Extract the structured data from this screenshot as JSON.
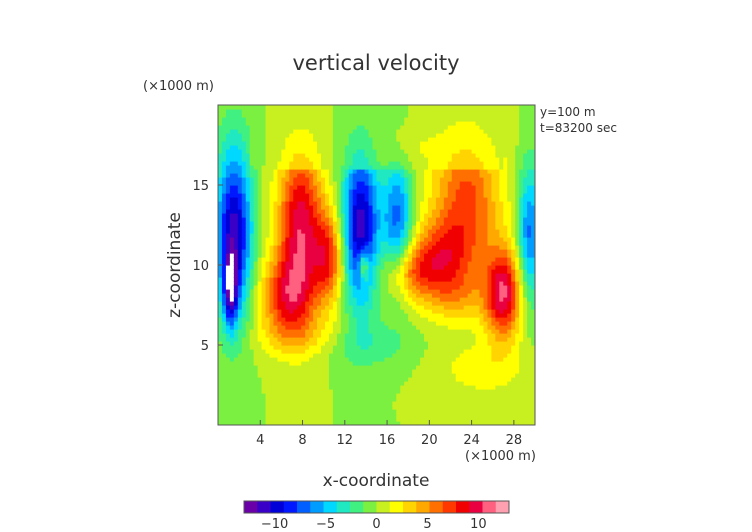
{
  "chart_data": {
    "type": "heatmap",
    "title": "vertical velocity",
    "xlabel": "x-coordinate",
    "ylabel": "z-coordinate",
    "x_unit": "(×1000 m)",
    "y_unit": "(×1000 m)",
    "annotations": [
      "y=100 m",
      "t=83200 sec"
    ],
    "xlim": [
      0,
      30
    ],
    "ylim": [
      0,
      20
    ],
    "x_ticks": [
      4,
      8,
      12,
      16,
      20,
      24,
      28
    ],
    "y_ticks": [
      5,
      10,
      15
    ],
    "grid": false,
    "colorbar": {
      "range": [
        -13,
        13
      ],
      "ticks": [
        -10,
        -5,
        0,
        5,
        10
      ],
      "colors": [
        "#6a00a8",
        "#3a00c8",
        "#0000d8",
        "#0018ff",
        "#0060ff",
        "#009cff",
        "#00d8ff",
        "#20e8c0",
        "#40f080",
        "#7cf040",
        "#c8f020",
        "#ffff00",
        "#ffd400",
        "#ffa800",
        "#ff7000",
        "#ff3800",
        "#f00000",
        "#e80040",
        "#ff6080",
        "#ffa0b0"
      ]
    },
    "features": [
      {
        "x": 1.5,
        "z": 12.0,
        "sx": 1.2,
        "sz": 3.8,
        "value": -11
      },
      {
        "x": 1.2,
        "z": 8.5,
        "sx": 0.45,
        "sz": 1.6,
        "value": -8
      },
      {
        "x": 7.8,
        "z": 12.5,
        "sx": 1.5,
        "sz": 3.5,
        "value": 10
      },
      {
        "x": 6.5,
        "z": 8.0,
        "sx": 1.8,
        "sz": 1.8,
        "value": 7
      },
      {
        "x": 10.5,
        "z": 10.5,
        "sx": 1.0,
        "sz": 2.0,
        "value": 7
      },
      {
        "x": 13.5,
        "z": 12.5,
        "sx": 1.2,
        "sz": 3.5,
        "value": -11
      },
      {
        "x": 13.8,
        "z": 10.0,
        "sx": 0.35,
        "sz": 0.7,
        "value": 6
      },
      {
        "x": 17.0,
        "z": 12.8,
        "sx": 1.0,
        "sz": 3.0,
        "value": -7
      },
      {
        "x": 18.0,
        "z": 9.5,
        "sx": 1.8,
        "sz": 1.2,
        "value": 5
      },
      {
        "x": 23.5,
        "z": 14.0,
        "sx": 2.3,
        "sz": 3.3,
        "value": 7
      },
      {
        "x": 21.0,
        "z": 10.5,
        "sx": 2.0,
        "sz": 1.6,
        "value": 6
      },
      {
        "x": 27.0,
        "z": 8.2,
        "sx": 1.2,
        "sz": 2.0,
        "value": 10
      },
      {
        "x": 29.5,
        "z": 12.0,
        "sx": 0.8,
        "sz": 3.0,
        "value": -7
      },
      {
        "x": 22.5,
        "z": 8.0,
        "sx": 2.2,
        "sz": 1.2,
        "value": 3
      },
      {
        "x": 14.0,
        "z": 5.0,
        "sx": 3.0,
        "sz": 1.0,
        "value": -2
      },
      {
        "x": 8.0,
        "z": 5.5,
        "sx": 3.0,
        "sz": 1.0,
        "value": 2
      },
      {
        "x": 18.0,
        "z": 17.5,
        "sx": 2.0,
        "sz": 1.0,
        "value": 2
      },
      {
        "x": 25.0,
        "z": 3.5,
        "sx": 3.0,
        "sz": 1.2,
        "value": 2
      }
    ]
  }
}
